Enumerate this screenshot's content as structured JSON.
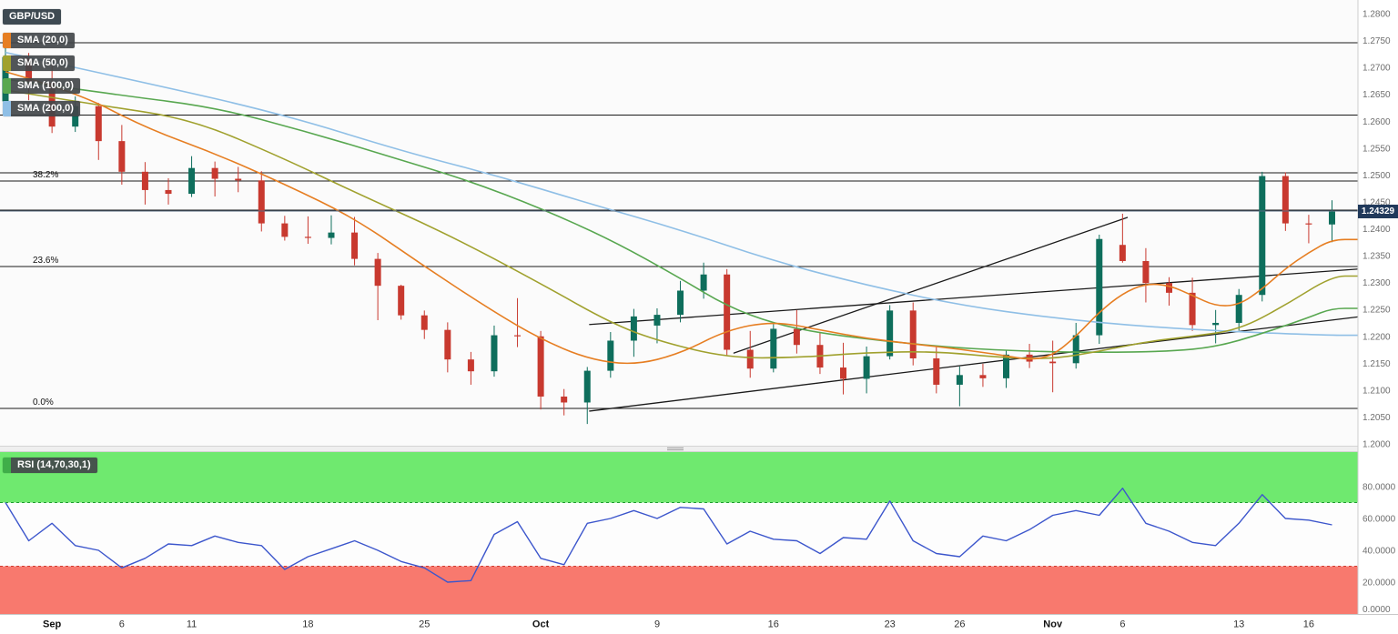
{
  "chart_data": {
    "type": "candlestick",
    "symbol": "GBP/USD",
    "last_price": 1.24329,
    "last_price_str": "1.24329",
    "price_axis": {
      "min": 1.2,
      "max": 1.28,
      "step": 0.005,
      "labels": [
        1.28,
        1.275,
        1.27,
        1.265,
        1.26,
        1.255,
        1.25,
        1.245,
        1.24,
        1.235,
        1.23,
        1.225,
        1.22,
        1.215,
        1.21,
        1.205,
        1.2
      ]
    },
    "x_axis_labels": [
      {
        "index": 2,
        "label": "Sep",
        "bold": true
      },
      {
        "index": 5,
        "label": "6",
        "bold": false
      },
      {
        "index": 8,
        "label": "11",
        "bold": false
      },
      {
        "index": 13,
        "label": "18",
        "bold": false
      },
      {
        "index": 18,
        "label": "25",
        "bold": false
      },
      {
        "index": 23,
        "label": "Oct",
        "bold": true
      },
      {
        "index": 28,
        "label": "9",
        "bold": false
      },
      {
        "index": 33,
        "label": "16",
        "bold": false
      },
      {
        "index": 38,
        "label": "23",
        "bold": false
      },
      {
        "index": 41,
        "label": "26",
        "bold": false
      },
      {
        "index": 45,
        "label": "Nov",
        "bold": true
      },
      {
        "index": 48,
        "label": "6",
        "bold": false
      },
      {
        "index": 53,
        "label": "13",
        "bold": false
      },
      {
        "index": 56,
        "label": "16",
        "bold": false
      }
    ],
    "x_dates": [
      "Aug 30",
      "Aug 31",
      "Sep 1",
      "Sep 4",
      "Sep 5",
      "Sep 6",
      "Sep 7",
      "Sep 8",
      "Sep 11",
      "Sep 12",
      "Sep 13",
      "Sep 14",
      "Sep 15",
      "Sep 18",
      "Sep 19",
      "Sep 20",
      "Sep 21",
      "Sep 22",
      "Sep 25",
      "Sep 26",
      "Sep 27",
      "Sep 28",
      "Sep 29",
      "Oct 2",
      "Oct 3",
      "Oct 4",
      "Oct 5",
      "Oct 6",
      "Oct 9",
      "Oct 10",
      "Oct 11",
      "Oct 12",
      "Oct 13",
      "Oct 16",
      "Oct 17",
      "Oct 18",
      "Oct 19",
      "Oct 20",
      "Oct 23",
      "Oct 24",
      "Oct 25",
      "Oct 26",
      "Oct 27",
      "Oct 30",
      "Oct 31",
      "Nov 1",
      "Nov 2",
      "Nov 3",
      "Nov 6",
      "Nov 7",
      "Nov 8",
      "Nov 9",
      "Nov 10",
      "Nov 13",
      "Nov 14",
      "Nov 15",
      "Nov 16",
      "Nov 17"
    ],
    "candle_colors": {
      "up": "#0e6e5c",
      "down": "#c8392f"
    },
    "candles": [
      [
        1.2637,
        1.2747,
        1.2619,
        1.2719
      ],
      [
        1.2719,
        1.2727,
        1.2639,
        1.2672
      ],
      [
        1.2672,
        1.2712,
        1.2578,
        1.259
      ],
      [
        1.259,
        1.2646,
        1.258,
        1.2628
      ],
      [
        1.2628,
        1.2634,
        1.2528,
        1.2563
      ],
      [
        1.2563,
        1.2593,
        1.2482,
        1.2506
      ],
      [
        1.2506,
        1.2524,
        1.2445,
        1.2472
      ],
      [
        1.2472,
        1.2494,
        1.2445,
        1.2465
      ],
      [
        1.2465,
        1.2535,
        1.2459,
        1.2513
      ],
      [
        1.2513,
        1.2525,
        1.246,
        1.2493
      ],
      [
        1.2493,
        1.2515,
        1.2468,
        1.249
      ],
      [
        1.249,
        1.2507,
        1.2395,
        1.241
      ],
      [
        1.241,
        1.2424,
        1.2378,
        1.2385
      ],
      [
        1.2385,
        1.2423,
        1.2372,
        1.2383
      ],
      [
        1.2383,
        1.2425,
        1.2371,
        1.2393
      ],
      [
        1.2393,
        1.2422,
        1.2332,
        1.2344
      ],
      [
        1.2344,
        1.2355,
        1.223,
        1.2294
      ],
      [
        1.2294,
        1.2296,
        1.2231,
        1.2239
      ],
      [
        1.2239,
        1.2248,
        1.2195,
        1.2212
      ],
      [
        1.2212,
        1.2226,
        1.2133,
        1.2157
      ],
      [
        1.2157,
        1.2171,
        1.211,
        1.2135
      ],
      [
        1.2135,
        1.222,
        1.2125,
        1.2202
      ],
      [
        1.2202,
        1.2271,
        1.218,
        1.22
      ],
      [
        1.22,
        1.221,
        1.2064,
        1.2088
      ],
      [
        1.2088,
        1.2102,
        1.2053,
        1.2077
      ],
      [
        1.2077,
        1.2143,
        1.2037,
        1.2136
      ],
      [
        1.2136,
        1.2208,
        1.2123,
        1.2192
      ],
      [
        1.2192,
        1.2251,
        1.2162,
        1.2237
      ],
      [
        1.222,
        1.2252,
        1.2187,
        1.224
      ],
      [
        1.224,
        1.2303,
        1.2226,
        1.2285
      ],
      [
        1.2285,
        1.2337,
        1.227,
        1.2315
      ],
      [
        1.2315,
        1.2325,
        1.2164,
        1.2175
      ],
      [
        1.2175,
        1.221,
        1.2123,
        1.214
      ],
      [
        1.214,
        1.2223,
        1.2133,
        1.2214
      ],
      [
        1.2214,
        1.2249,
        1.2168,
        1.2184
      ],
      [
        1.2184,
        1.2208,
        1.213,
        1.2142
      ],
      [
        1.2142,
        1.2188,
        1.2092,
        1.2121
      ],
      [
        1.2121,
        1.2181,
        1.2094,
        1.2163
      ],
      [
        1.2163,
        1.2258,
        1.2157,
        1.2248
      ],
      [
        1.2248,
        1.2263,
        1.2146,
        1.2159
      ],
      [
        1.2159,
        1.218,
        1.2094,
        1.211
      ],
      [
        1.211,
        1.2144,
        1.207,
        1.2128
      ],
      [
        1.2128,
        1.2149,
        1.2106,
        1.2122
      ],
      [
        1.2122,
        1.2175,
        1.2104,
        1.2166
      ],
      [
        1.2166,
        1.2186,
        1.2141,
        1.2153
      ],
      [
        1.2153,
        1.2192,
        1.2096,
        1.215
      ],
      [
        1.215,
        1.2225,
        1.214,
        1.2202
      ],
      [
        1.2202,
        1.2389,
        1.2186,
        1.2381
      ],
      [
        1.237,
        1.2428,
        1.2337,
        1.234
      ],
      [
        1.234,
        1.2364,
        1.2263,
        1.2299
      ],
      [
        1.2299,
        1.231,
        1.2257,
        1.2281
      ],
      [
        1.2281,
        1.2309,
        1.221,
        1.2221
      ],
      [
        1.2221,
        1.2249,
        1.2187,
        1.2225
      ],
      [
        1.2225,
        1.2288,
        1.2211,
        1.2277
      ],
      [
        1.2277,
        1.2506,
        1.2265,
        1.2498
      ],
      [
        1.2498,
        1.2505,
        1.2396,
        1.241
      ],
      [
        1.241,
        1.2426,
        1.2373,
        1.2408
      ],
      [
        1.2408,
        1.2453,
        1.2375,
        1.2432
      ]
    ],
    "sma": [
      {
        "name": "sma-20",
        "label": "SMA (20,0)",
        "color": "#e67e22",
        "points": [
          [
            0,
            1.2692
          ],
          [
            3,
            1.2655
          ],
          [
            6,
            1.2588
          ],
          [
            9,
            1.254
          ],
          [
            12,
            1.2483
          ],
          [
            15,
            1.242
          ],
          [
            18,
            1.233
          ],
          [
            21,
            1.2245
          ],
          [
            23,
            1.2195
          ],
          [
            25,
            1.2158
          ],
          [
            27,
            1.2146
          ],
          [
            29,
            1.2168
          ],
          [
            31,
            1.2212
          ],
          [
            33,
            1.2228
          ],
          [
            35,
            1.2212
          ],
          [
            37,
            1.2196
          ],
          [
            39,
            1.2186
          ],
          [
            41,
            1.2176
          ],
          [
            43,
            1.2164
          ],
          [
            44,
            1.2156
          ],
          [
            45,
            1.2164
          ],
          [
            46,
            1.22
          ],
          [
            47,
            1.2245
          ],
          [
            48,
            1.228
          ],
          [
            49,
            1.2298
          ],
          [
            50,
            1.2295
          ],
          [
            51,
            1.2276
          ],
          [
            52,
            1.2256
          ],
          [
            53,
            1.2258
          ],
          [
            54,
            1.2288
          ],
          [
            55,
            1.2326
          ],
          [
            56,
            1.2356
          ],
          [
            57,
            1.238
          ]
        ]
      },
      {
        "name": "sma-50",
        "label": "SMA (50,0)",
        "color": "#a0a12e",
        "points": [
          [
            0,
            1.2658
          ],
          [
            4,
            1.263
          ],
          [
            8,
            1.2604
          ],
          [
            12,
            1.253
          ],
          [
            15,
            1.2468
          ],
          [
            19,
            1.239
          ],
          [
            23,
            1.2298
          ],
          [
            26,
            1.2225
          ],
          [
            28,
            1.2192
          ],
          [
            31,
            1.216
          ],
          [
            34,
            1.216
          ],
          [
            37,
            1.217
          ],
          [
            40,
            1.2172
          ],
          [
            43,
            1.216
          ],
          [
            45,
            1.2158
          ],
          [
            47,
            1.2172
          ],
          [
            49,
            1.219
          ],
          [
            51,
            1.22
          ],
          [
            53,
            1.2212
          ],
          [
            55,
            1.2258
          ],
          [
            57,
            1.2312
          ]
        ]
      },
      {
        "name": "sma-100",
        "label": "SMA (100,0)",
        "color": "#58a750",
        "points": [
          [
            0,
            1.2678
          ],
          [
            5,
            1.2648
          ],
          [
            9,
            1.2626
          ],
          [
            13,
            1.258
          ],
          [
            17,
            1.2528
          ],
          [
            20,
            1.2488
          ],
          [
            23,
            1.2438
          ],
          [
            26,
            1.238
          ],
          [
            29,
            1.2308
          ],
          [
            31,
            1.2256
          ],
          [
            33,
            1.2224
          ],
          [
            35,
            1.2206
          ],
          [
            38,
            1.219
          ],
          [
            41,
            1.2178
          ],
          [
            44,
            1.2172
          ],
          [
            47,
            1.217
          ],
          [
            50,
            1.2172
          ],
          [
            52,
            1.218
          ],
          [
            54,
            1.2205
          ],
          [
            56,
            1.2235
          ],
          [
            57,
            1.2252
          ]
        ]
      },
      {
        "name": "sma-200",
        "label": "SMA (200,0)",
        "color": "#8fbfe6",
        "points": [
          [
            0,
            1.2728
          ],
          [
            6,
            1.2672
          ],
          [
            12,
            1.2612
          ],
          [
            17,
            1.2545
          ],
          [
            21,
            1.25
          ],
          [
            25,
            1.2448
          ],
          [
            29,
            1.2398
          ],
          [
            33,
            1.234
          ],
          [
            37,
            1.2295
          ],
          [
            41,
            1.2258
          ],
          [
            45,
            1.2234
          ],
          [
            49,
            1.2218
          ],
          [
            53,
            1.2208
          ],
          [
            57,
            1.2202
          ]
        ]
      }
    ],
    "horizontal_lines": [
      {
        "price": 1.2746
      },
      {
        "price": 1.2611
      },
      {
        "price": 1.2504
      },
      {
        "price": 1.2435
      }
    ],
    "fib_levels": [
      {
        "label": "38.2%",
        "price": 1.2489
      },
      {
        "label": "23.6%",
        "price": 1.233
      },
      {
        "label": "0.0%",
        "price": 1.2066
      }
    ],
    "trendlines": [
      {
        "from": [
          25.1,
          1.2222
        ],
        "to": [
          58.3,
          1.2325
        ]
      },
      {
        "from": [
          25.1,
          1.2061
        ],
        "to": [
          58.3,
          1.2236
        ]
      },
      {
        "from": [
          31.3,
          1.2169
        ],
        "to": [
          48.2,
          1.2421
        ]
      }
    ],
    "rsi": {
      "label": "RSI (14,70,30,1)",
      "swatch_color": "#3fae49",
      "line_color": "#3c56cc",
      "overbought": 70,
      "oversold": 30,
      "overbought_fill": "#6fe96f",
      "oversold_fill": "#f8796e",
      "overbought_line_color": "#1f9d2f",
      "oversold_line_color": "#d23b2f",
      "axis_values": [
        80,
        60,
        40,
        20,
        0
      ],
      "values": [
        70,
        46,
        57,
        43,
        40,
        29,
        35,
        44,
        43,
        49,
        45,
        43,
        28,
        36,
        41,
        46,
        40,
        33,
        29,
        20,
        21,
        50,
        58,
        35,
        31,
        57,
        60,
        65,
        60,
        67,
        66,
        44,
        52,
        47,
        46,
        38,
        48,
        47,
        71,
        46,
        38,
        36,
        49,
        46,
        53,
        62,
        65,
        62,
        79,
        57,
        52,
        45,
        43,
        57,
        75,
        60,
        59,
        56
      ]
    }
  }
}
